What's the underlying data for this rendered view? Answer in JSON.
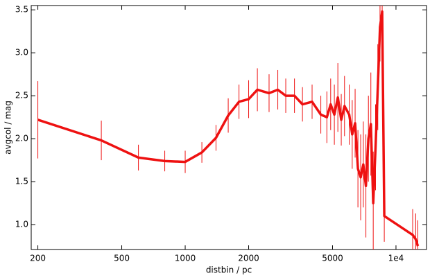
{
  "chart_data": {
    "type": "line",
    "x_label": "distbin / pc",
    "y_label": "avgcol / mag",
    "x": [
      200,
      400,
      600,
      800,
      1000,
      1200,
      1400,
      1600,
      1800,
      2000,
      2200,
      2500,
      2750,
      3000,
      3300,
      3600,
      4000,
      4400,
      4700,
      4900,
      5100,
      5300,
      5500,
      5700,
      6000,
      6200,
      6400,
      6600,
      6800,
      7000,
      7200,
      7400,
      7600,
      7800,
      8000,
      8200,
      8400,
      8600,
      8800,
      12000,
      12400,
      12700
    ],
    "values": [
      2.22,
      1.98,
      1.78,
      1.74,
      1.73,
      1.84,
      2.01,
      2.27,
      2.43,
      2.46,
      2.57,
      2.53,
      2.57,
      2.5,
      2.5,
      2.4,
      2.43,
      2.28,
      2.25,
      2.4,
      2.28,
      2.48,
      2.22,
      2.38,
      2.28,
      2.05,
      2.18,
      1.65,
      1.55,
      1.7,
      1.45,
      2.0,
      2.17,
      1.25,
      1.9,
      2.6,
      3.3,
      3.48,
      1.1,
      0.88,
      0.83,
      0.75
    ],
    "errors": [
      0.45,
      0.23,
      0.15,
      0.12,
      0.13,
      0.12,
      0.15,
      0.2,
      0.2,
      0.22,
      0.25,
      0.22,
      0.23,
      0.2,
      0.2,
      0.2,
      0.2,
      0.22,
      0.3,
      0.3,
      0.35,
      0.4,
      0.3,
      0.35,
      0.35,
      0.4,
      0.4,
      0.45,
      0.5,
      0.5,
      0.6,
      0.5,
      0.6,
      0.6,
      0.5,
      0.5,
      0.4,
      0.5,
      0.3,
      0.3,
      0.3,
      0.3
    ],
    "color": "#ee1111",
    "log_x": true,
    "xlim": [
      186,
      13960
    ],
    "ylim": [
      0.71,
      3.55
    ],
    "xticks": [
      200,
      500,
      1000,
      2000,
      5000,
      {
        "value": 10000,
        "label": "1e4"
      }
    ],
    "yticks": [
      {
        "value": 1.0,
        "label": "1.0"
      },
      {
        "value": 1.5,
        "label": "1.5"
      },
      {
        "value": 2.0,
        "label": "2.0"
      },
      {
        "value": 2.5,
        "label": "2.5"
      },
      {
        "value": 3.0,
        "label": "3.0"
      },
      {
        "value": 3.5,
        "label": "3.5"
      }
    ]
  }
}
